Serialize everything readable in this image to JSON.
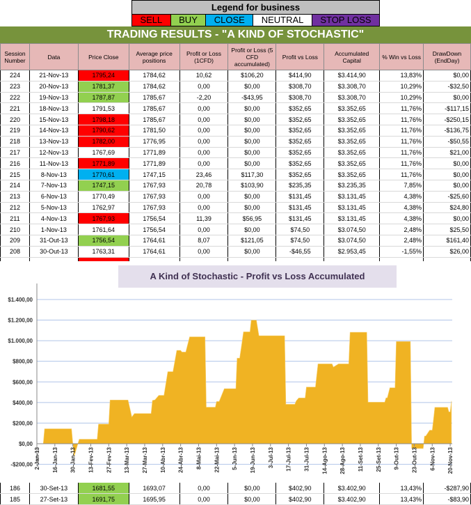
{
  "legend": {
    "title": "Legend for business",
    "items": [
      {
        "label": "SELL",
        "color": "#ff0000",
        "text": "#000000"
      },
      {
        "label": "BUY",
        "color": "#92d050",
        "text": "#000000"
      },
      {
        "label": "CLOSE",
        "color": "#00b0f0",
        "text": "#000000"
      },
      {
        "label": "NEUTRAL",
        "color": "#ffffff",
        "text": "#000000"
      },
      {
        "label": "STOP LOSS",
        "color": "#7030a0",
        "text": "#000000"
      }
    ]
  },
  "title": "TRADING RESULTS - \"A KIND OF STOCHASTIC\"",
  "columns": [
    "Session Number",
    "Data",
    "Price Close",
    "Average price positions",
    "Profit or Loss (1CFD)",
    "Profit or Loss (5 CFD accumulated)",
    "Profit vs Loss",
    "Accumulated Capital",
    "% Win vs Loss",
    "DrawDown (EndDay)"
  ],
  "status_colors": {
    "sell": "#ff0000",
    "buy": "#92d050",
    "close": "#00b0f0",
    "neutral": "#ffffff"
  },
  "rows": [
    {
      "status": "sell",
      "cells": [
        "224",
        "21-Nov-13",
        "1795,24",
        "1784,62",
        "10,62",
        "$106,20",
        "$414,90",
        "$3.414,90",
        "13,83%",
        "$0,00"
      ]
    },
    {
      "status": "buy",
      "cells": [
        "223",
        "20-Nov-13",
        "1781,37",
        "1784,62",
        "0,00",
        "$0,00",
        "$308,70",
        "$3.308,70",
        "10,29%",
        "-$32,50"
      ]
    },
    {
      "status": "buy",
      "cells": [
        "222",
        "19-Nov-13",
        "1787,87",
        "1785,67",
        "-2,20",
        "-$43,95",
        "$308,70",
        "$3.308,70",
        "10,29%",
        "$0,00"
      ]
    },
    {
      "status": "neutral",
      "cells": [
        "221",
        "18-Nov-13",
        "1791,53",
        "1785,67",
        "0,00",
        "$0,00",
        "$352,65",
        "$3.352,65",
        "11,76%",
        "-$117,15"
      ]
    },
    {
      "status": "sell",
      "cells": [
        "220",
        "15-Nov-13",
        "1798,18",
        "1785,67",
        "0,00",
        "$0,00",
        "$352,65",
        "$3.352,65",
        "11,76%",
        "-$250,15"
      ]
    },
    {
      "status": "sell",
      "cells": [
        "219",
        "14-Nov-13",
        "1790,62",
        "1781,50",
        "0,00",
        "$0,00",
        "$352,65",
        "$3.352,65",
        "11,76%",
        "-$136,75"
      ]
    },
    {
      "status": "sell",
      "cells": [
        "218",
        "13-Nov-13",
        "1782,00",
        "1776,95",
        "0,00",
        "$0,00",
        "$352,65",
        "$3.352,65",
        "11,76%",
        "-$50,55"
      ]
    },
    {
      "status": "neutral",
      "cells": [
        "217",
        "12-Nov-13",
        "1767,69",
        "1771,89",
        "0,00",
        "$0,00",
        "$352,65",
        "$3.352,65",
        "11,76%",
        "$21,00"
      ]
    },
    {
      "status": "sell",
      "cells": [
        "216",
        "11-Nov-13",
        "1771,89",
        "1771,89",
        "0,00",
        "$0,00",
        "$352,65",
        "$3.352,65",
        "11,76%",
        "$0,00"
      ]
    },
    {
      "status": "close",
      "cells": [
        "215",
        "8-Nov-13",
        "1770,61",
        "1747,15",
        "23,46",
        "$117,30",
        "$352,65",
        "$3.352,65",
        "11,76%",
        "$0,00"
      ]
    },
    {
      "status": "buy",
      "cells": [
        "214",
        "7-Nov-13",
        "1747,15",
        "1767,93",
        "20,78",
        "$103,90",
        "$235,35",
        "$3.235,35",
        "7,85%",
        "$0,00"
      ]
    },
    {
      "status": "neutral",
      "cells": [
        "213",
        "6-Nov-13",
        "1770,49",
        "1767,93",
        "0,00",
        "$0,00",
        "$131,45",
        "$3.131,45",
        "4,38%",
        "-$25,60"
      ]
    },
    {
      "status": "neutral",
      "cells": [
        "212",
        "5-Nov-13",
        "1762,97",
        "1767,93",
        "0,00",
        "$0,00",
        "$131,45",
        "$3.131,45",
        "4,38%",
        "$24,80"
      ]
    },
    {
      "status": "sell",
      "cells": [
        "211",
        "4-Nov-13",
        "1767,93",
        "1756,54",
        "11,39",
        "$56,95",
        "$131,45",
        "$3.131,45",
        "4,38%",
        "$0,00"
      ]
    },
    {
      "status": "neutral",
      "cells": [
        "210",
        "1-Nov-13",
        "1761,64",
        "1756,54",
        "0,00",
        "$0,00",
        "$74,50",
        "$3.074,50",
        "2,48%",
        "$25,50"
      ]
    },
    {
      "status": "buy",
      "cells": [
        "209",
        "31-Out-13",
        "1756,54",
        "1764,61",
        "8,07",
        "$121,05",
        "$74,50",
        "$3.074,50",
        "2,48%",
        "$161,40"
      ]
    },
    {
      "status": "neutral",
      "cells": [
        "208",
        "30-Out-13",
        "1763,31",
        "1764,61",
        "0,00",
        "$0,00",
        "-$46,55",
        "$2.953,45",
        "-1,55%",
        "$26,00"
      ]
    },
    {
      "status": "sell",
      "cells": [
        "",
        "",
        "",
        "",
        "",
        "",
        "",
        "",
        "",
        ""
      ]
    }
  ],
  "bottom_rows": [
    {
      "status": "buy",
      "cells": [
        "186",
        "30-Set-13",
        "1681,55",
        "1693,07",
        "0,00",
        "$0,00",
        "$402,90",
        "$3.402,90",
        "13,43%",
        "-$287,90"
      ]
    },
    {
      "status": "buy",
      "cells": [
        "185",
        "27-Set-13",
        "1691,75",
        "1695,95",
        "0,00",
        "$0,00",
        "$402,90",
        "$3.402,90",
        "13,43%",
        "-$83,90"
      ]
    }
  ],
  "chart_data": {
    "type": "area",
    "title": "A Kind of Stochastic - Profit vs Loss Accumulated",
    "ylim": [
      -200,
      1400
    ],
    "yticks": [
      -200,
      0,
      200,
      400,
      600,
      800,
      1000,
      1200,
      1400
    ],
    "ytick_labels": [
      "-$200,00",
      "$0,00",
      "$200,00",
      "$400,00",
      "$600,00",
      "$800,00",
      "$1.000,00",
      "$1.200,00",
      "$1.400,00"
    ],
    "xlim": [
      "2013-01-02",
      "2013-11-21"
    ],
    "xticks": [
      "2013-01-02",
      "2013-01-16",
      "2013-01-30",
      "2013-02-13",
      "2013-02-27",
      "2013-03-13",
      "2013-03-27",
      "2013-04-10",
      "2013-04-24",
      "2013-05-08",
      "2013-05-22",
      "2013-06-05",
      "2013-06-19",
      "2013-07-03",
      "2013-07-17",
      "2013-07-31",
      "2013-08-14",
      "2013-08-28",
      "2013-09-11",
      "2013-09-25",
      "2013-10-09",
      "2013-10-23",
      "2013-11-06",
      "2013-11-20"
    ],
    "xtick_labels": [
      "2-Jan-13",
      "16-Jan-13",
      "30-Jan-13",
      "13-Fev-13",
      "27-Fev-13",
      "13-Mar-13",
      "27-Mar-13",
      "10-Abr-13",
      "24-Abr-13",
      "8-Mai-13",
      "22-Mai-13",
      "5-Jun-13",
      "19-Jun-13",
      "3-Jul-13",
      "17-Jul-13",
      "31-Jul-13",
      "14-Ago-13",
      "28-Ago-13",
      "11-Set-13",
      "25-Set-13",
      "9-Out-13",
      "23-Out-13",
      "6-Nov-13",
      "20-Nov-13"
    ],
    "grid": true,
    "color": "#f0b323",
    "points": [
      [
        "2013-01-07",
        0
      ],
      [
        "2013-01-08",
        145
      ],
      [
        "2013-01-29",
        145
      ],
      [
        "2013-01-30",
        0
      ],
      [
        "2013-01-31",
        -125
      ],
      [
        "2013-02-04",
        43
      ],
      [
        "2013-02-18",
        43
      ],
      [
        "2013-02-19",
        191
      ],
      [
        "2013-02-27",
        191
      ],
      [
        "2013-02-28",
        424
      ],
      [
        "2013-03-14",
        424
      ],
      [
        "2013-03-17",
        259
      ],
      [
        "2013-03-19",
        293
      ],
      [
        "2013-04-01",
        293
      ],
      [
        "2013-04-02",
        420
      ],
      [
        "2013-04-04",
        425
      ],
      [
        "2013-04-07",
        469
      ],
      [
        "2013-04-11",
        469
      ],
      [
        "2013-04-14",
        699
      ],
      [
        "2013-04-18",
        699
      ],
      [
        "2013-04-21",
        906
      ],
      [
        "2013-04-24",
        906
      ],
      [
        "2013-04-25",
        890
      ],
      [
        "2013-04-28",
        890
      ],
      [
        "2013-05-01",
        1037
      ],
      [
        "2013-05-13",
        1037
      ],
      [
        "2013-05-14",
        354
      ],
      [
        "2013-05-21",
        354
      ],
      [
        "2013-05-22",
        410
      ],
      [
        "2013-05-24",
        410
      ],
      [
        "2013-05-28",
        534
      ],
      [
        "2013-06-06",
        534
      ],
      [
        "2013-06-07",
        830
      ],
      [
        "2013-06-09",
        830
      ],
      [
        "2013-06-10",
        917
      ],
      [
        "2013-06-12",
        1086
      ],
      [
        "2013-06-17",
        1086
      ],
      [
        "2013-06-18",
        1199
      ],
      [
        "2013-06-22",
        1199
      ],
      [
        "2013-06-24",
        1048
      ],
      [
        "2013-07-14",
        1048
      ],
      [
        "2013-07-15",
        383
      ],
      [
        "2013-07-22",
        383
      ],
      [
        "2013-07-23",
        415
      ],
      [
        "2013-07-25",
        444
      ],
      [
        "2013-07-30",
        444
      ],
      [
        "2013-07-31",
        550
      ],
      [
        "2013-08-07",
        550
      ],
      [
        "2013-08-09",
        775
      ],
      [
        "2013-08-20",
        775
      ],
      [
        "2013-08-21",
        744
      ],
      [
        "2013-08-25",
        775
      ],
      [
        "2013-09-02",
        775
      ],
      [
        "2013-09-03",
        1082
      ],
      [
        "2013-09-16",
        1082
      ],
      [
        "2013-09-17",
        403
      ],
      [
        "2013-09-30",
        403
      ],
      [
        "2013-10-01",
        445
      ],
      [
        "2013-10-02",
        445
      ],
      [
        "2013-10-04",
        543
      ],
      [
        "2013-10-08",
        543
      ],
      [
        "2013-10-09",
        992
      ],
      [
        "2013-10-20",
        992
      ],
      [
        "2013-10-21",
        -45
      ],
      [
        "2013-10-30",
        -46.55
      ],
      [
        "2013-10-31",
        74.5
      ],
      [
        "2013-11-01",
        74.5
      ],
      [
        "2013-11-04",
        131.45
      ],
      [
        "2013-11-06",
        131.45
      ],
      [
        "2013-11-07",
        235.35
      ],
      [
        "2013-11-08",
        352.65
      ],
      [
        "2013-11-18",
        352.65
      ],
      [
        "2013-11-19",
        308.7
      ],
      [
        "2013-11-20",
        308.7
      ],
      [
        "2013-11-21",
        414.9
      ]
    ]
  }
}
